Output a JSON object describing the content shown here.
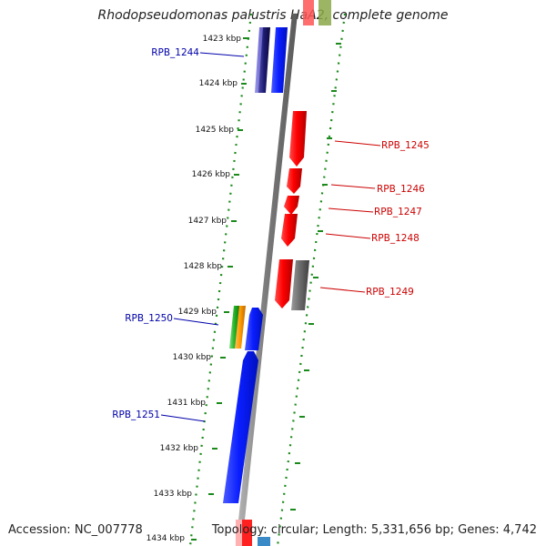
{
  "title": "Rhodopseudomonas palustris HaA2, complete genome",
  "footer": {
    "accession_label": "Accession:",
    "accession": "NC_007778",
    "topology_label": "Topology:",
    "topology": "circular",
    "length_label": "Length:",
    "length": "5,331,656 bp",
    "genes_label": "Genes:",
    "genes": "4,742"
  },
  "colors": {
    "forward_label": "#0000aa",
    "reverse_label": "#cc0000",
    "tick_dots": "#1a8a1a",
    "backbone": "#888888"
  },
  "ticks": [
    "1423 kbp",
    "1424 kbp",
    "1425 kbp",
    "1426 kbp",
    "1427 kbp",
    "1428 kbp",
    "1429 kbp",
    "1430 kbp",
    "1431 kbp",
    "1432 kbp",
    "1433 kbp",
    "1434 kbp"
  ],
  "gene_labels": {
    "forward": [
      "RPB_1244",
      "RPB_1250",
      "RPB_1251"
    ],
    "reverse": [
      "RPB_1245",
      "RPB_1246",
      "RPB_1247",
      "RPB_1248",
      "RPB_1249"
    ]
  }
}
